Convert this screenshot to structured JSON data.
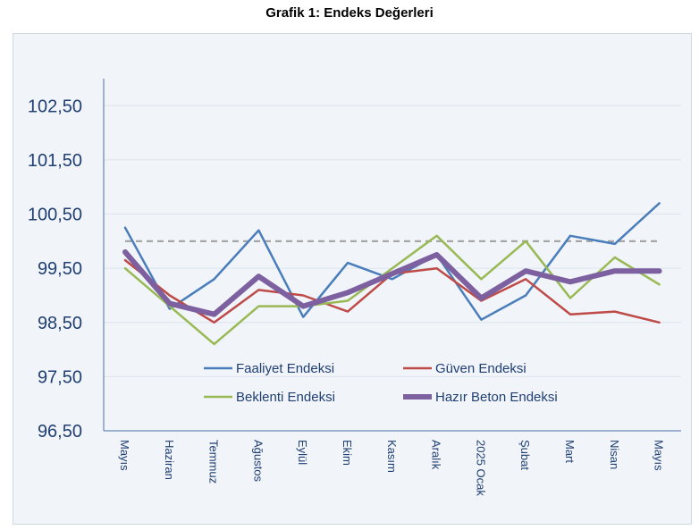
{
  "chart_data": {
    "type": "line",
    "title": "Grafik 1: Endeks Değerleri",
    "categories": [
      "Mayıs",
      "Haziran",
      "Temmuz",
      "Ağustos",
      "Eylül",
      "Ekim",
      "Kasım",
      "Aralık",
      "2025 Ocak",
      "Şubat",
      "Mart",
      "Nisan",
      "Mayıs"
    ],
    "ylim": [
      96.5,
      103.0
    ],
    "yticks": [
      "96,50",
      "97,50",
      "98,50",
      "99,50",
      "100,50",
      "101,50",
      "102,50"
    ],
    "ytick_values": [
      96.5,
      97.5,
      98.5,
      99.5,
      100.5,
      101.5,
      102.5
    ],
    "reference_line": {
      "value": 100.0,
      "color": "#a6a6a6"
    },
    "grid": true,
    "legend_position": "lower-center",
    "series": [
      {
        "name": "Faaliyet Endeksi",
        "color": "#4a7ebb",
        "width": 2.5,
        "values": [
          100.25,
          98.75,
          99.3,
          100.2,
          98.6,
          99.6,
          99.3,
          99.75,
          98.55,
          99.0,
          100.1,
          99.95,
          100.7
        ]
      },
      {
        "name": "Güven Endeksi",
        "color": "#be4b48",
        "width": 2.5,
        "values": [
          99.65,
          99.0,
          98.5,
          99.1,
          99.0,
          98.7,
          99.4,
          99.5,
          98.9,
          99.3,
          98.65,
          98.7,
          98.5
        ]
      },
      {
        "name": "Beklenti Endeksi",
        "color": "#98b954",
        "width": 2.5,
        "values": [
          99.5,
          98.8,
          98.1,
          98.8,
          98.8,
          98.9,
          99.5,
          100.1,
          99.3,
          100.0,
          98.95,
          99.7,
          99.2
        ]
      },
      {
        "name": "Hazır Beton Endeksi",
        "color": "#7d60a0",
        "width": 6,
        "values": [
          99.8,
          98.85,
          98.65,
          99.35,
          98.8,
          99.05,
          99.4,
          99.75,
          98.95,
          99.45,
          99.25,
          99.45,
          99.45
        ]
      }
    ]
  }
}
